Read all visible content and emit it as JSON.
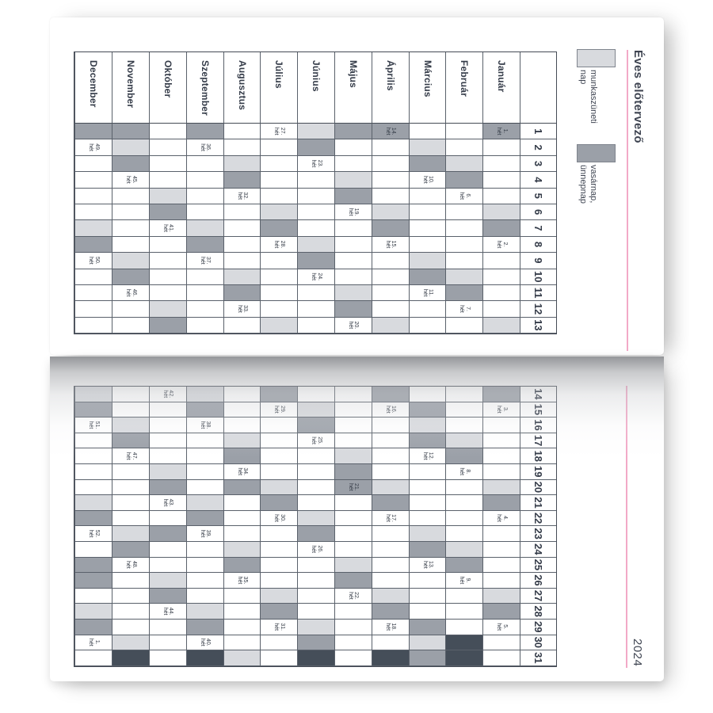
{
  "title": "Éves előtervező",
  "year": "2024",
  "week_word": "hét",
  "legend": {
    "items": [
      {
        "id": "work-free-day",
        "color": "#d8dade",
        "lines": [
          "munkaszüneti",
          "nap"
        ]
      },
      {
        "id": "sunday-holiday",
        "color": "#9ba0a8",
        "lines": [
          "vasárnap,",
          "ünnepnap"
        ]
      }
    ]
  },
  "colors": {
    "accent_pink": "#f2a9c7",
    "saturday": "#d8dade",
    "sunday_holiday": "#9ba0a8",
    "nonexistent_day": "#454e59",
    "grid_border": "#5a616b",
    "text": "#353c49"
  },
  "day_numbers": [
    "1",
    "2",
    "3",
    "4",
    "5",
    "6",
    "7",
    "8",
    "9",
    "10",
    "11",
    "12",
    "13",
    "14",
    "15",
    "16",
    "17",
    "18",
    "19",
    "20",
    "21",
    "22",
    "23",
    "24",
    "25",
    "26",
    "27",
    "28",
    "29",
    "30",
    "31"
  ],
  "pages": [
    {
      "id": "left",
      "day_range": [
        1,
        13
      ],
      "month_column": true
    },
    {
      "id": "right",
      "day_range": [
        14,
        31
      ],
      "month_column": false
    }
  ],
  "state_legend": {
    "w": "workday",
    "s": "saturday",
    "u": "sunday-or-holiday",
    "x": "nonexistent"
  },
  "months": [
    {
      "name": "Január",
      "states": "uwwwwsuwwwwwsuwwwwwsuwwwwwsuwww",
      "weeks": {
        "1": "1.",
        "8": "2.",
        "15": "3.",
        "22": "4.",
        "29": "5."
      }
    },
    {
      "name": "Február",
      "states": "wwsuwwwwwsuwwwwwsuwwwwwsuwwwwxx",
      "weeks": {
        "5": "6.",
        "12": "7.",
        "19": "8.",
        "26": "9."
      }
    },
    {
      "name": "Március",
      "states": "wsuwwwwwsuwwwwusuwwwwwsuwwwwusu",
      "weeks": {
        "4": "10.",
        "11": "11.",
        "18": "12.",
        "25": "13."
      }
    },
    {
      "name": "Április",
      "states": "uwwwwsuwwwwwsuwwwwwsuwwwwwsuwwx",
      "weeks": {
        "1": "14.",
        "8": "15.",
        "15": "16.",
        "22": "17.",
        "29": "18."
      }
    },
    {
      "name": "Május",
      "states": "uwwsuwwwwwsuwwwwwsuuwwwwsuwwwww",
      "weeks": {
        "6": "19.",
        "13": "20.",
        "20": "21.",
        "27": "22."
      }
    },
    {
      "name": "Június",
      "states": "suwwwwwsuwwwwwsuwwwwwsuwwwwwsux",
      "weeks": {
        "3": "23.",
        "10": "24.",
        "17": "25.",
        "24": "26."
      }
    },
    {
      "name": "Július",
      "states": "wwwwwsuwwwwwsuwwwwwsuwwwwwsuwww",
      "weeks": {
        "1": "27.",
        "8": "28.",
        "15": "29.",
        "22": "30.",
        "29": "31."
      }
    },
    {
      "name": "Augusztus",
      "states": "wwsuwwwwwsuwwwwwsuwuwwwsuwwwwws",
      "weeks": {
        "5": "32.",
        "12": "33.",
        "19": "34.",
        "26": "35."
      }
    },
    {
      "name": "Szeptember",
      "states": "uwwwwwsuwwwwwsuwwwwwsuwwwwwsuwx",
      "weeks": {
        "2": "36.",
        "9": "37.",
        "16": "38.",
        "23": "39.",
        "30": "40."
      }
    },
    {
      "name": "Október",
      "states": "wwwwsuwwwwwsuwwwwwsuwwuwwsuwwww",
      "weeks": {
        "7": "41.",
        "14": "42.",
        "21": "43.",
        "28": "44."
      }
    },
    {
      "name": "November",
      "states": "usuwwwwwsuwwwwwsuwwwwwsuwwwwwsx",
      "weeks": {
        "4": "45.",
        "11": "46.",
        "18": "47.",
        "25": "48."
      }
    },
    {
      "name": "December",
      "states": "uwwwwwsuwwwwwsuwwwwwsuwwuuwsuww",
      "weeks": {
        "2": "49.",
        "9": "50.",
        "16": "51.",
        "23": "52.",
        "30": "1."
      }
    }
  ]
}
